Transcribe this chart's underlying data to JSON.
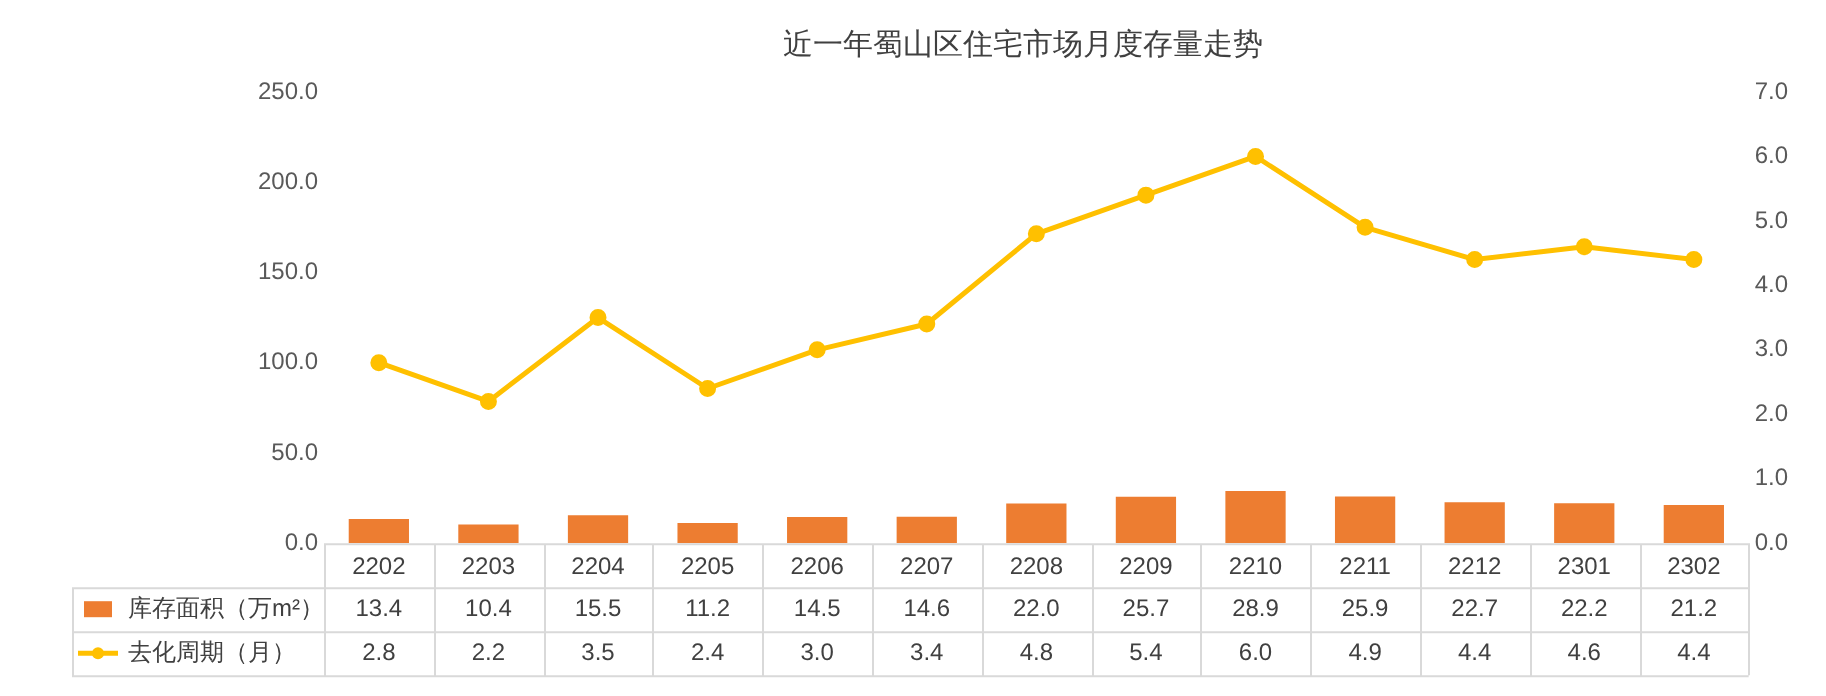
{
  "chart_data": {
    "type": "bar",
    "title": "近一年蜀山区住宅市场月度存量走势",
    "categories": [
      "2202",
      "2203",
      "2204",
      "2205",
      "2206",
      "2207",
      "2208",
      "2209",
      "2210",
      "2211",
      "2212",
      "2301",
      "2302"
    ],
    "series": [
      {
        "name": "库存面积（万m²）",
        "color": "#ed7d31",
        "values": [
          13.4,
          10.4,
          15.5,
          11.2,
          14.5,
          14.6,
          22.0,
          25.7,
          28.9,
          25.9,
          22.7,
          22.2,
          21.2
        ],
        "value_labels": [
          "13.4",
          "10.4",
          "15.5",
          "11.2",
          "14.5",
          "14.6",
          "22.0",
          "25.7",
          "28.9",
          "25.9",
          "22.7",
          "22.2",
          "21.2"
        ]
      },
      {
        "name": "去化周期（月）",
        "type": "line",
        "axis": "y2",
        "color": "#ffc000",
        "values": [
          2.8,
          2.2,
          3.5,
          2.4,
          3.0,
          3.4,
          4.8,
          5.4,
          6.0,
          4.9,
          4.4,
          4.6,
          4.4
        ],
        "value_labels": [
          "2.8",
          "2.2",
          "3.5",
          "2.4",
          "3.0",
          "3.4",
          "4.8",
          "5.4",
          "6.0",
          "4.9",
          "4.4",
          "4.6",
          "4.4"
        ]
      }
    ],
    "ylim": [
      0,
      250
    ],
    "yticks": [
      {
        "value": 0,
        "label": "0.0"
      },
      {
        "value": 50,
        "label": "50.0"
      },
      {
        "value": 100,
        "label": "100.0"
      },
      {
        "value": 150,
        "label": "150.0"
      },
      {
        "value": 200,
        "label": "200.0"
      },
      {
        "value": 250,
        "label": "250.0"
      }
    ],
    "y2lim": [
      0,
      7
    ],
    "y2ticks": [
      {
        "value": 0,
        "label": "0.0"
      },
      {
        "value": 1,
        "label": "1.0"
      },
      {
        "value": 2,
        "label": "2.0"
      },
      {
        "value": 3,
        "label": "3.0"
      },
      {
        "value": 4,
        "label": "4.0"
      },
      {
        "value": 5,
        "label": "5.0"
      },
      {
        "value": 6,
        "label": "6.0"
      },
      {
        "value": 7,
        "label": "7.0"
      }
    ],
    "legend": "bottom",
    "marker": "circle",
    "grid": false
  }
}
